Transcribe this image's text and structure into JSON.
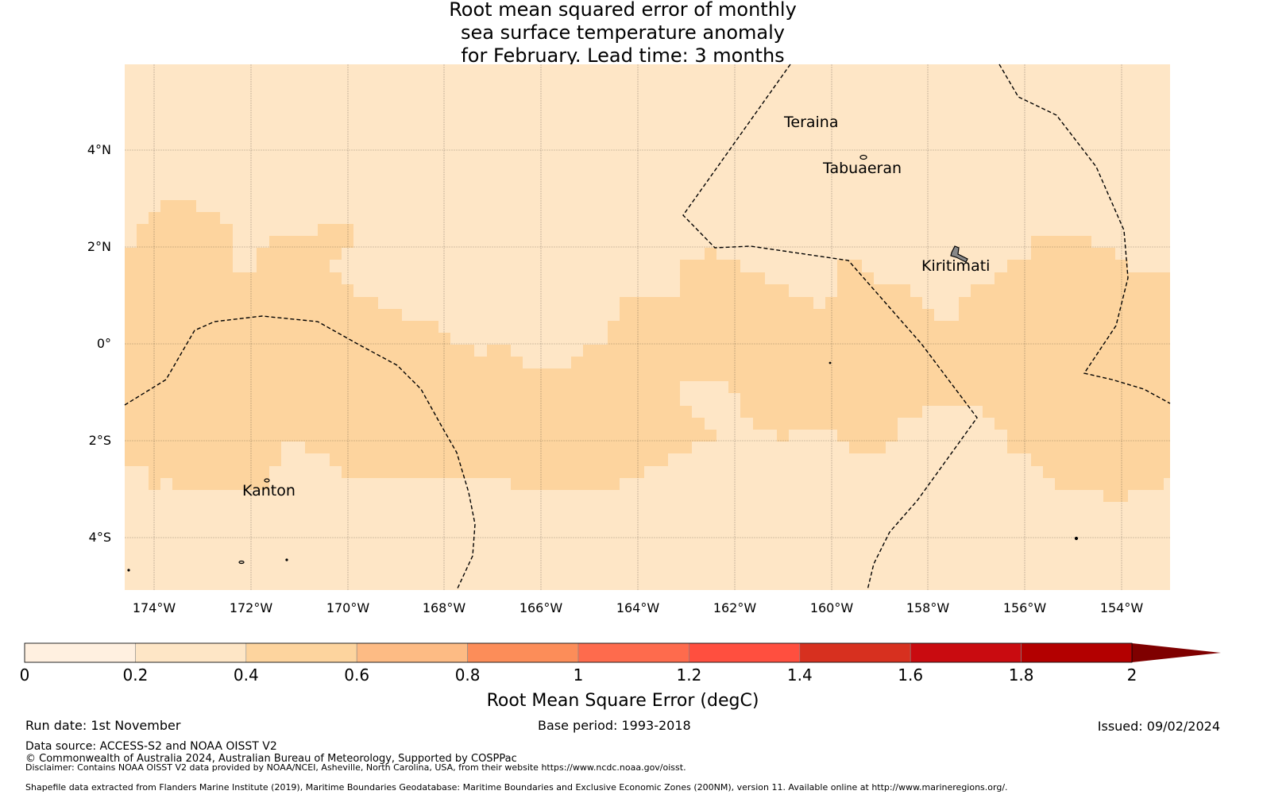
{
  "title": [
    "Root mean squared error of monthly",
    "sea surface temperature anomaly",
    "for February. Lead time: 3 months"
  ],
  "map": {
    "lat_ticks": [
      "4°N",
      "2°N",
      "0°",
      "2°S",
      "4°S"
    ],
    "lon_ticks": [
      "174°W",
      "172°W",
      "170°W",
      "168°W",
      "166°W",
      "164°W",
      "162°W",
      "160°W",
      "158°W",
      "156°W",
      "154°W"
    ],
    "islands": [
      "Teraina",
      "Tabuaeran",
      "Kiritimati",
      "Kanton"
    ],
    "field_colors": {
      "low": "#fee6c6",
      "mid": "#fdd49e"
    }
  },
  "colorbar": {
    "label": "Root Mean Square Error (degC)",
    "ticks": [
      "0",
      "0.2",
      "0.4",
      "0.6",
      "0.8",
      "1",
      "1.2",
      "1.4",
      "1.6",
      "1.8",
      "2"
    ],
    "colors": [
      "#fff0e0",
      "#fee6c6",
      "#fdd49e",
      "#fdbb84",
      "#fc8d59",
      "#fe6b4d",
      "#ff4f3f",
      "#d7301f",
      "#c90b10",
      "#b30000",
      "#7f0000"
    ]
  },
  "footer": {
    "run_date": "Run date: 1st November",
    "base_period": "Base period: 1993-2018",
    "issued": "Issued: 09/02/2024",
    "data_source": "Data source: ACCESS-S2 and NOAA OISST V2",
    "copyright": "© Commonwealth of Australia 2024, Australian Bureau of Meteorology, Supported by COSPPac",
    "disclaimer": "Disclaimer: Contains NOAA OISST V2 data provided by NOAA/NCEI, Asheville, North Carolina, USA, from their website https://www.ncdc.noaa.gov/oisst.",
    "shapefile": "Shapefile data extracted from Flanders Marine Institute (2019), Maritime Boundaries Geodatabase: Maritime Boundaries and Exclusive Economic Zones (200NM), version 11. Available online at http://www.marineregions.org/."
  }
}
